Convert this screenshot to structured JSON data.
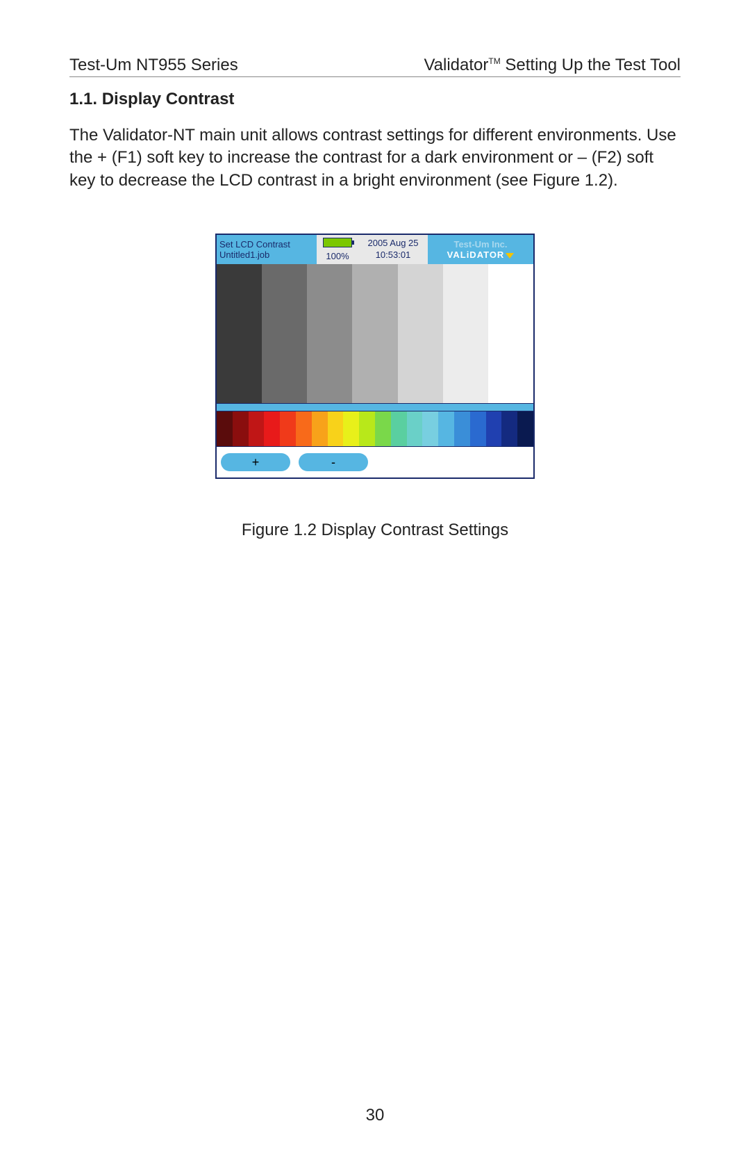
{
  "header": {
    "left": "Test-Um NT955 Series",
    "right_prefix": "Validator",
    "right_tm": "TM",
    "right_suffix": " Setting Up the Test Tool"
  },
  "section": {
    "title": "1.1. Display Contrast",
    "body": "The Validator-NT main unit allows contrast settings for different environments. Use the + (F1) soft key to increase the contrast for a dark environment or – (F2) soft key to decrease the LCD contrast in a bright environment (see Figure 1.2)."
  },
  "device": {
    "status": {
      "title": "Set LCD Contrast",
      "job": "Untitled1.job",
      "battery_pct": "100%",
      "date": "2005 Aug 25",
      "time": "10:53:01",
      "brand_line1": "Test-Um Inc.",
      "brand_line2": "VALiDATOR"
    },
    "gray_bars": [
      "#3a3a3a",
      "#6a6a6a",
      "#8c8c8c",
      "#b0b0b0",
      "#d4d4d4",
      "#ececec",
      "#ffffff"
    ],
    "divider_color": "#56b6e2",
    "color_bar": [
      "#5a0c0c",
      "#8a0e0e",
      "#c01616",
      "#e81a1a",
      "#f03a1a",
      "#f86a1a",
      "#f8a21a",
      "#f8d21a",
      "#e8f01a",
      "#b8e81a",
      "#7ad84a",
      "#5acfa0",
      "#6ad0c8",
      "#78cfe0",
      "#56b6e2",
      "#3a8ed8",
      "#2a6ad0",
      "#2040b0",
      "#142a80",
      "#0a1a50"
    ],
    "softkeys": {
      "plus": "+",
      "minus": "-"
    }
  },
  "figure_caption": "Figure 1.2 Display Contrast Settings",
  "page_number": "30"
}
